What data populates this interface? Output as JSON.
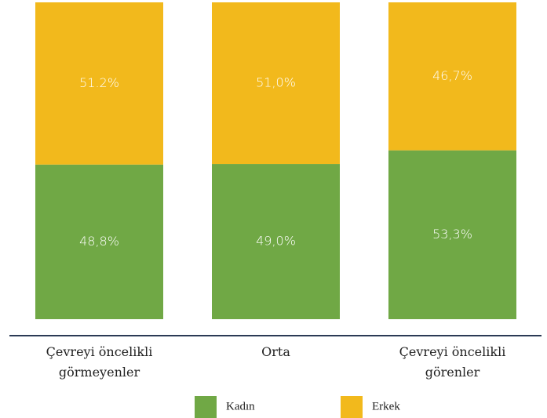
{
  "chart_data": {
    "type": "stacked_bar",
    "categories": [
      "Çevreyi öncelikli görmeyenler",
      "Orta",
      "Çevreyi öncelikli görenler"
    ],
    "series": [
      {
        "name": "Kadın",
        "color": "#70a845",
        "values": [
          48.8,
          49.0,
          53.3
        ],
        "value_labels": [
          "48,8%",
          "49,0%",
          "53,3%"
        ]
      },
      {
        "name": "Erkek",
        "color": "#f2b91c",
        "values": [
          51.2,
          51.0,
          46.7
        ],
        "value_labels": [
          "51.2%",
          "51,0%",
          "46,7%"
        ]
      }
    ],
    "ylim": [
      0,
      100
    ]
  }
}
